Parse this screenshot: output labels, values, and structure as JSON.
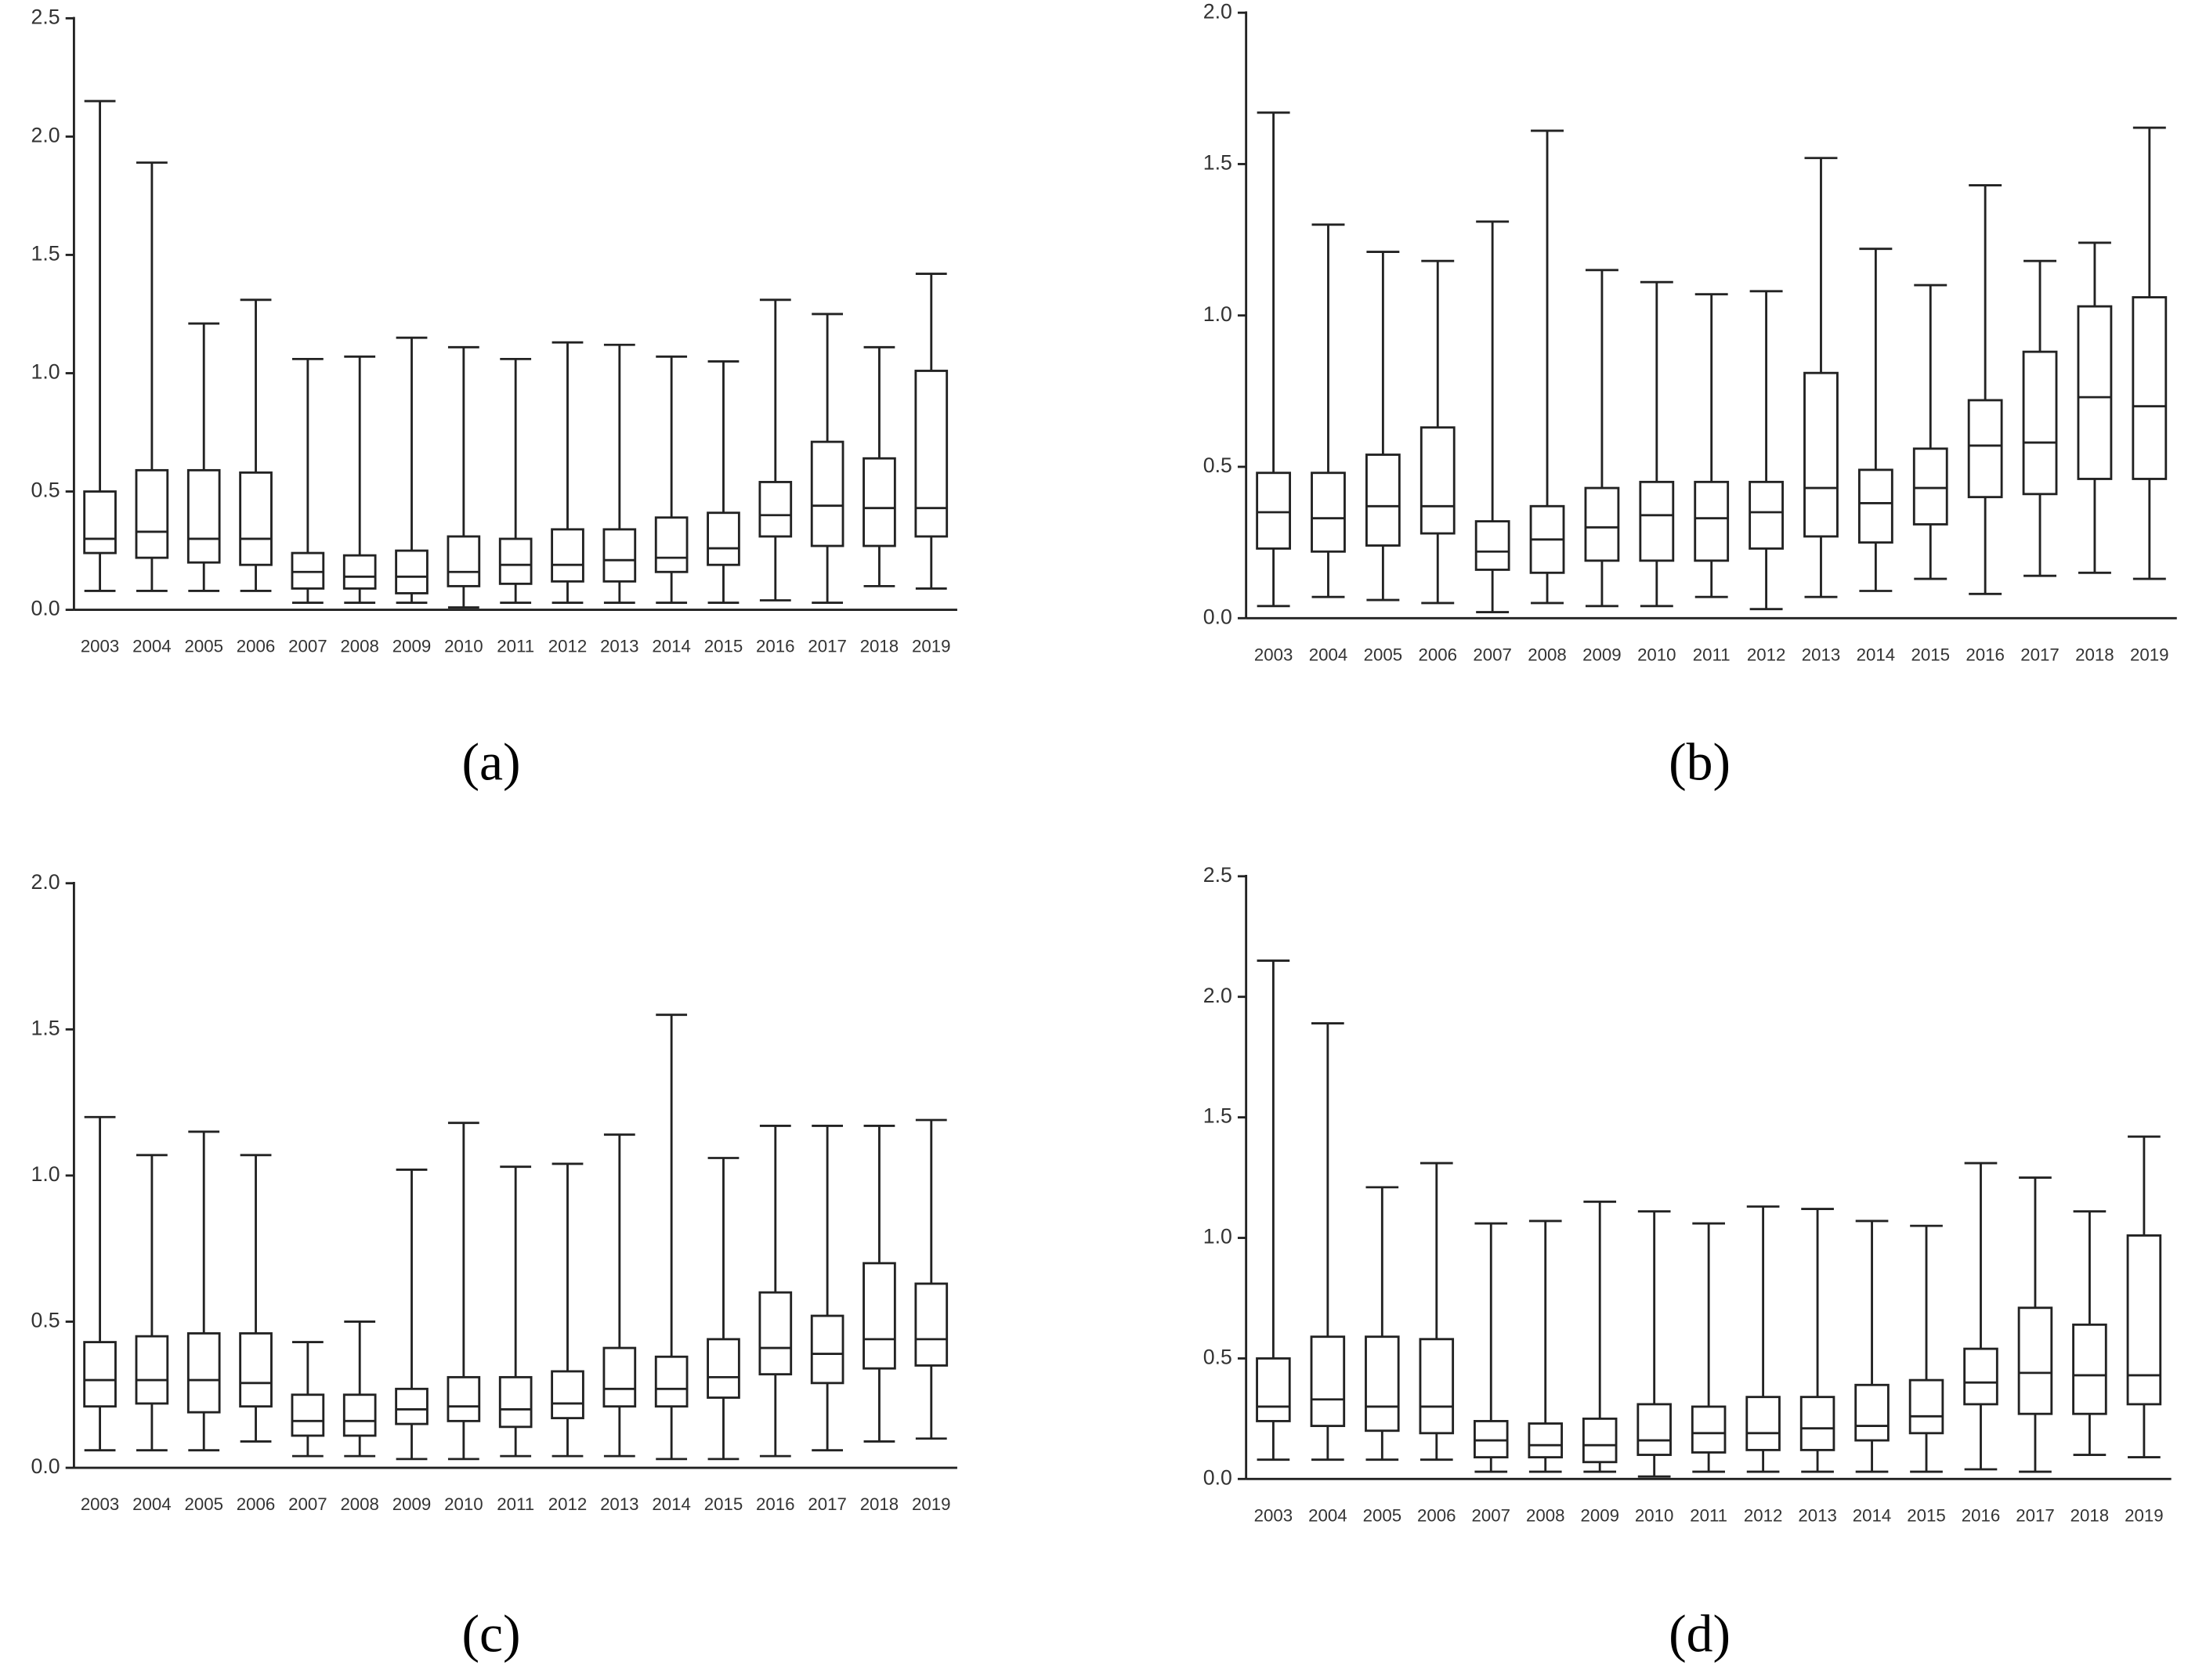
{
  "chart_data": [
    {
      "type": "box",
      "label": "(a)",
      "ylim": [
        0,
        2.5
      ],
      "yticks": [
        {
          "value": 0,
          "label": "0.0"
        },
        {
          "value": 0.5,
          "label": "0.5"
        },
        {
          "value": 1,
          "label": "1.0"
        },
        {
          "value": 1.5,
          "label": "1.5"
        },
        {
          "value": 2,
          "label": "2.0"
        },
        {
          "value": 2.5,
          "label": "2.5"
        }
      ],
      "categories": [
        "2003",
        "2004",
        "2005",
        "2006",
        "2007",
        "2008",
        "2009",
        "2010",
        "2011",
        "2012",
        "2013",
        "2014",
        "2015",
        "2016",
        "2017",
        "2018",
        "2019"
      ],
      "min": [
        0.08,
        0.08,
        0.08,
        0.08,
        0.03,
        0.03,
        0.03,
        0.01,
        0.03,
        0.03,
        0.03,
        0.03,
        0.03,
        0.04,
        0.03,
        0.1,
        0.09
      ],
      "q1": [
        0.24,
        0.22,
        0.2,
        0.19,
        0.09,
        0.09,
        0.07,
        0.1,
        0.11,
        0.12,
        0.12,
        0.16,
        0.19,
        0.31,
        0.27,
        0.27,
        0.31
      ],
      "median": [
        0.3,
        0.33,
        0.3,
        0.3,
        0.16,
        0.14,
        0.14,
        0.16,
        0.19,
        0.19,
        0.21,
        0.22,
        0.26,
        0.4,
        0.44,
        0.43,
        0.43
      ],
      "q3": [
        0.5,
        0.59,
        0.59,
        0.58,
        0.24,
        0.23,
        0.25,
        0.31,
        0.3,
        0.34,
        0.34,
        0.39,
        0.41,
        0.54,
        0.71,
        0.64,
        1.01
      ],
      "max": [
        2.15,
        1.89,
        1.21,
        1.31,
        1.06,
        1.07,
        1.15,
        1.11,
        1.06,
        1.13,
        1.12,
        1.07,
        1.05,
        1.31,
        1.25,
        1.11,
        1.42
      ]
    },
    {
      "type": "box",
      "label": "(b)",
      "ylim": [
        0,
        2.0
      ],
      "yticks": [
        {
          "value": 0,
          "label": "0.0"
        },
        {
          "value": 0.5,
          "label": "0.5"
        },
        {
          "value": 1,
          "label": "1.0"
        },
        {
          "value": 1.5,
          "label": "1.5"
        },
        {
          "value": 2,
          "label": "2.0"
        }
      ],
      "categories": [
        "2003",
        "2004",
        "2005",
        "2006",
        "2007",
        "2008",
        "2009",
        "2010",
        "2011",
        "2012",
        "2013",
        "2014",
        "2015",
        "2016",
        "2017",
        "2018",
        "2019"
      ],
      "min": [
        0.04,
        0.07,
        0.06,
        0.05,
        0.02,
        0.05,
        0.04,
        0.04,
        0.07,
        0.03,
        0.07,
        0.09,
        0.13,
        0.08,
        0.14,
        0.15,
        0.13
      ],
      "q1": [
        0.23,
        0.22,
        0.24,
        0.28,
        0.16,
        0.15,
        0.19,
        0.19,
        0.19,
        0.23,
        0.27,
        0.25,
        0.31,
        0.4,
        0.41,
        0.46,
        0.46
      ],
      "median": [
        0.35,
        0.33,
        0.37,
        0.37,
        0.22,
        0.26,
        0.3,
        0.34,
        0.33,
        0.35,
        0.43,
        0.38,
        0.43,
        0.57,
        0.58,
        0.73,
        0.7
      ],
      "q3": [
        0.48,
        0.48,
        0.54,
        0.63,
        0.32,
        0.37,
        0.43,
        0.45,
        0.45,
        0.45,
        0.81,
        0.49,
        0.56,
        0.72,
        0.88,
        1.03,
        1.06
      ],
      "max": [
        1.67,
        1.3,
        1.21,
        1.18,
        1.31,
        1.61,
        1.15,
        1.11,
        1.07,
        1.08,
        1.52,
        1.22,
        1.1,
        1.43,
        1.18,
        1.24,
        1.62
      ]
    },
    {
      "type": "box",
      "label": "(c)",
      "ylim": [
        0,
        2.0
      ],
      "yticks": [
        {
          "value": 0,
          "label": "0.0"
        },
        {
          "value": 0.5,
          "label": "0.5"
        },
        {
          "value": 1,
          "label": "1.0"
        },
        {
          "value": 1.5,
          "label": "1.5"
        },
        {
          "value": 2,
          "label": "2.0"
        }
      ],
      "categories": [
        "2003",
        "2004",
        "2005",
        "2006",
        "2007",
        "2008",
        "2009",
        "2010",
        "2011",
        "2012",
        "2013",
        "2014",
        "2015",
        "2016",
        "2017",
        "2018",
        "2019"
      ],
      "min": [
        0.06,
        0.06,
        0.06,
        0.09,
        0.04,
        0.04,
        0.03,
        0.03,
        0.04,
        0.04,
        0.04,
        0.03,
        0.03,
        0.04,
        0.06,
        0.09,
        0.1
      ],
      "q1": [
        0.21,
        0.22,
        0.19,
        0.21,
        0.11,
        0.11,
        0.15,
        0.16,
        0.14,
        0.17,
        0.21,
        0.21,
        0.24,
        0.32,
        0.29,
        0.34,
        0.35
      ],
      "median": [
        0.3,
        0.3,
        0.3,
        0.29,
        0.16,
        0.16,
        0.2,
        0.21,
        0.2,
        0.22,
        0.27,
        0.27,
        0.31,
        0.41,
        0.39,
        0.44,
        0.44
      ],
      "q3": [
        0.43,
        0.45,
        0.46,
        0.46,
        0.25,
        0.25,
        0.27,
        0.31,
        0.31,
        0.33,
        0.41,
        0.38,
        0.44,
        0.6,
        0.52,
        0.7,
        0.63
      ],
      "max": [
        1.2,
        1.07,
        1.15,
        1.07,
        0.43,
        0.5,
        1.02,
        1.18,
        1.03,
        1.04,
        1.14,
        1.55,
        1.06,
        1.17,
        1.17,
        1.17,
        1.19
      ]
    },
    {
      "type": "box",
      "label": "(d)",
      "ylim": [
        0,
        2.5
      ],
      "yticks": [
        {
          "value": 0,
          "label": "0.0"
        },
        {
          "value": 0.5,
          "label": "0.5"
        },
        {
          "value": 1,
          "label": "1.0"
        },
        {
          "value": 1.5,
          "label": "1.5"
        },
        {
          "value": 2,
          "label": "2.0"
        },
        {
          "value": 2.5,
          "label": "2.5"
        }
      ],
      "categories": [
        "2003",
        "2004",
        "2005",
        "2006",
        "2007",
        "2008",
        "2009",
        "2010",
        "2011",
        "2012",
        "2013",
        "2014",
        "2015",
        "2016",
        "2017",
        "2018",
        "2019"
      ],
      "min": [
        0.08,
        0.08,
        0.08,
        0.08,
        0.03,
        0.03,
        0.03,
        0.01,
        0.03,
        0.03,
        0.03,
        0.03,
        0.03,
        0.04,
        0.03,
        0.1,
        0.09
      ],
      "q1": [
        0.24,
        0.22,
        0.2,
        0.19,
        0.09,
        0.09,
        0.07,
        0.1,
        0.11,
        0.12,
        0.12,
        0.16,
        0.19,
        0.31,
        0.27,
        0.27,
        0.31
      ],
      "median": [
        0.3,
        0.33,
        0.3,
        0.3,
        0.16,
        0.14,
        0.14,
        0.16,
        0.19,
        0.19,
        0.21,
        0.22,
        0.26,
        0.4,
        0.44,
        0.43,
        0.43
      ],
      "q3": [
        0.5,
        0.59,
        0.59,
        0.58,
        0.24,
        0.23,
        0.25,
        0.31,
        0.3,
        0.34,
        0.34,
        0.39,
        0.41,
        0.54,
        0.71,
        0.64,
        1.01
      ],
      "max": [
        2.15,
        1.89,
        1.21,
        1.31,
        1.06,
        1.07,
        1.15,
        1.11,
        1.06,
        1.13,
        1.12,
        1.07,
        1.05,
        1.31,
        1.25,
        1.11,
        1.42
      ]
    }
  ]
}
